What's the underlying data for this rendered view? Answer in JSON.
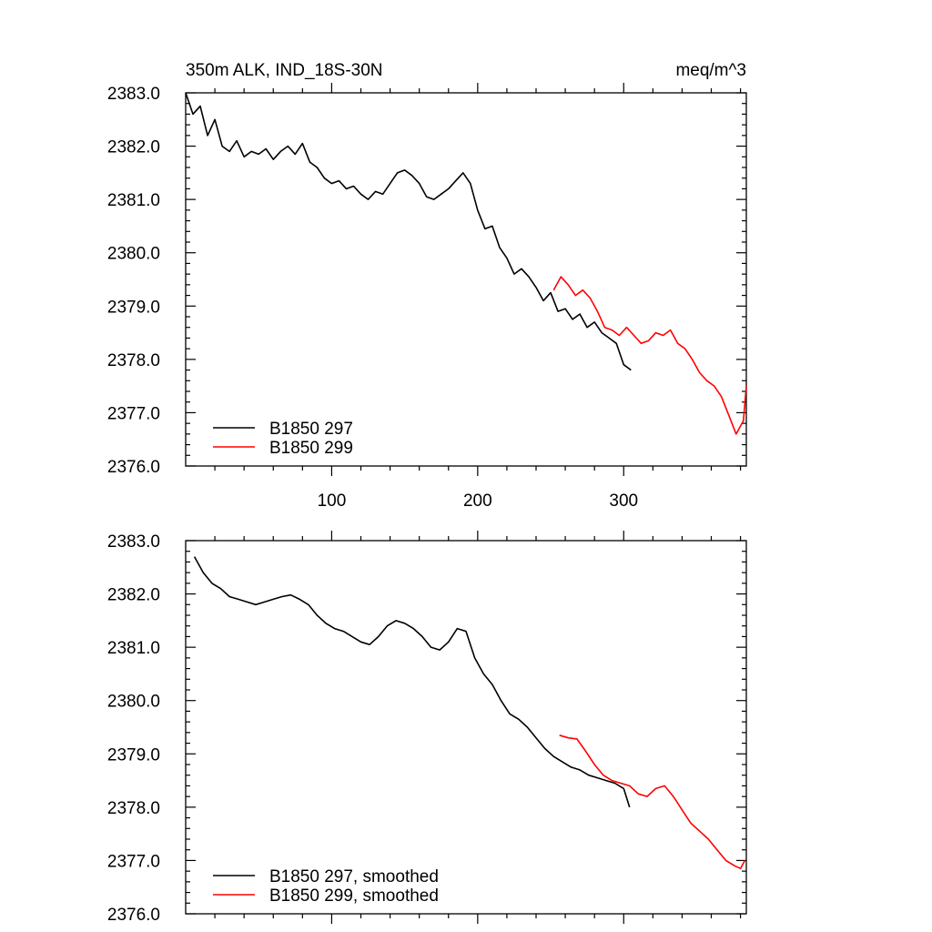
{
  "chart_data": [
    {
      "type": "line",
      "title": "350m ALK, IND_18S-30N",
      "units": "meq/m^3",
      "xlim": [
        0,
        384
      ],
      "ylim": [
        2376.0,
        2383.0
      ],
      "xticks": [
        100,
        200,
        300
      ],
      "yticks": [
        "2383.0",
        "2382.0",
        "2381.0",
        "2380.0",
        "2379.0",
        "2378.0",
        "2377.0",
        "2376.0"
      ],
      "series": [
        {
          "name": "B1850 297",
          "color": "#000000",
          "x": [
            0,
            5,
            10,
            15,
            20,
            25,
            30,
            35,
            40,
            45,
            50,
            55,
            60,
            65,
            70,
            75,
            80,
            85,
            90,
            95,
            100,
            105,
            110,
            115,
            120,
            125,
            130,
            135,
            140,
            145,
            150,
            155,
            160,
            165,
            170,
            175,
            180,
            185,
            190,
            195,
            200,
            205,
            210,
            215,
            220,
            225,
            230,
            235,
            240,
            245,
            250,
            255,
            260,
            265,
            270,
            275,
            280,
            285,
            290,
            295,
            300,
            305
          ],
          "values": [
            2383.0,
            2382.6,
            2382.75,
            2382.2,
            2382.5,
            2382.0,
            2381.9,
            2382.1,
            2381.8,
            2381.9,
            2381.85,
            2381.95,
            2381.75,
            2381.9,
            2382.0,
            2381.85,
            2382.05,
            2381.7,
            2381.6,
            2381.4,
            2381.3,
            2381.35,
            2381.2,
            2381.25,
            2381.1,
            2381.0,
            2381.15,
            2381.1,
            2381.3,
            2381.5,
            2381.55,
            2381.45,
            2381.3,
            2381.05,
            2381.0,
            2381.1,
            2381.2,
            2381.35,
            2381.5,
            2381.3,
            2380.8,
            2380.45,
            2380.5,
            2380.1,
            2379.9,
            2379.6,
            2379.7,
            2379.55,
            2379.35,
            2379.1,
            2379.25,
            2378.9,
            2378.95,
            2378.75,
            2378.85,
            2378.6,
            2378.7,
            2378.5,
            2378.4,
            2378.3,
            2377.9,
            2377.8
          ]
        },
        {
          "name": "B1850 299",
          "color": "#ff0000",
          "x": [
            252,
            257,
            262,
            267,
            272,
            277,
            282,
            287,
            292,
            297,
            302,
            307,
            312,
            317,
            322,
            327,
            332,
            337,
            342,
            347,
            352,
            357,
            362,
            367,
            372,
            377,
            382,
            384
          ],
          "values": [
            2379.3,
            2379.55,
            2379.4,
            2379.2,
            2379.3,
            2379.15,
            2378.9,
            2378.6,
            2378.55,
            2378.45,
            2378.6,
            2378.45,
            2378.3,
            2378.35,
            2378.5,
            2378.45,
            2378.55,
            2378.3,
            2378.2,
            2378.0,
            2377.75,
            2377.6,
            2377.5,
            2377.3,
            2376.95,
            2376.6,
            2376.85,
            2377.5
          ]
        }
      ]
    },
    {
      "type": "line",
      "title": "",
      "xlim": [
        0,
        384
      ],
      "ylim": [
        2376.0,
        2383.0
      ],
      "xticks": [],
      "yticks": [
        "2383.0",
        "2382.0",
        "2381.0",
        "2380.0",
        "2379.0",
        "2378.0",
        "2377.0",
        "2376.0"
      ],
      "series": [
        {
          "name": "B1850 297, smoothed",
          "color": "#000000",
          "x": [
            6,
            12,
            18,
            24,
            30,
            36,
            42,
            48,
            54,
            60,
            66,
            72,
            78,
            84,
            90,
            96,
            102,
            108,
            114,
            120,
            126,
            132,
            138,
            144,
            150,
            156,
            162,
            168,
            174,
            180,
            186,
            192,
            198,
            204,
            210,
            216,
            222,
            228,
            234,
            240,
            246,
            252,
            258,
            264,
            270,
            276,
            282,
            288,
            294,
            300,
            304
          ],
          "values": [
            2382.7,
            2382.4,
            2382.2,
            2382.1,
            2381.95,
            2381.9,
            2381.85,
            2381.8,
            2381.85,
            2381.9,
            2381.95,
            2381.98,
            2381.9,
            2381.8,
            2381.6,
            2381.45,
            2381.35,
            2381.3,
            2381.2,
            2381.1,
            2381.05,
            2381.2,
            2381.4,
            2381.5,
            2381.45,
            2381.35,
            2381.2,
            2381.0,
            2380.95,
            2381.1,
            2381.35,
            2381.3,
            2380.8,
            2380.5,
            2380.3,
            2380.0,
            2379.75,
            2379.65,
            2379.5,
            2379.3,
            2379.1,
            2378.95,
            2378.85,
            2378.75,
            2378.7,
            2378.6,
            2378.55,
            2378.5,
            2378.45,
            2378.35,
            2378.0
          ]
        },
        {
          "name": "B1850 299, smoothed",
          "color": "#ff0000",
          "x": [
            256,
            262,
            268,
            274,
            280,
            286,
            292,
            298,
            304,
            310,
            316,
            322,
            328,
            334,
            340,
            346,
            352,
            358,
            364,
            370,
            376,
            380,
            383
          ],
          "values": [
            2379.35,
            2379.3,
            2379.28,
            2379.05,
            2378.8,
            2378.6,
            2378.5,
            2378.45,
            2378.4,
            2378.25,
            2378.2,
            2378.35,
            2378.4,
            2378.2,
            2377.95,
            2377.7,
            2377.55,
            2377.4,
            2377.2,
            2377.0,
            2376.9,
            2376.85,
            2377.0
          ]
        }
      ]
    }
  ]
}
